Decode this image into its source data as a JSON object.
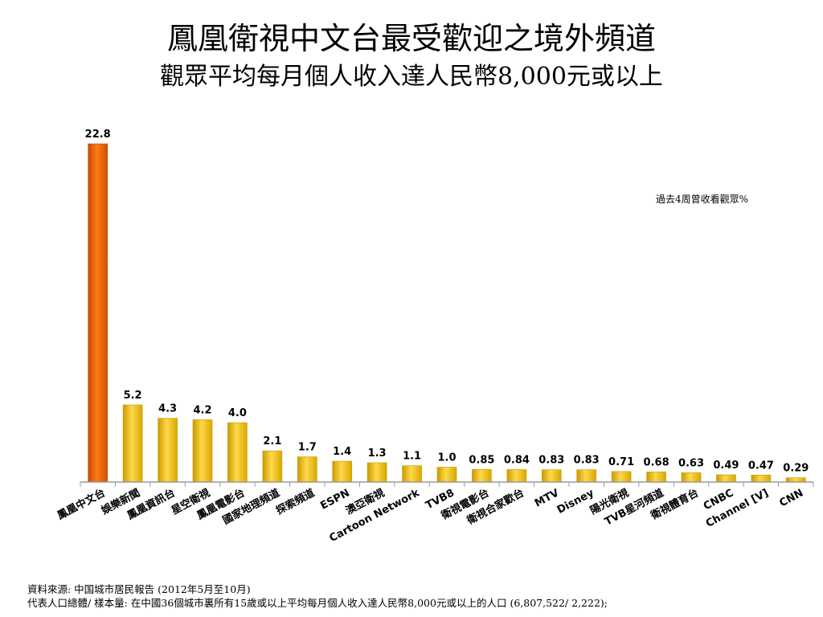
{
  "title": "鳳凰衛視中文台最受歡迎之境外頻道",
  "subtitle": "觀眾平均每月個人收入達人民幣8,000元或以上",
  "legend_note": "過去4周曾收看觀眾%",
  "footnotes": [
    "資料來源: 中国城市居民報告 (2012年5月至10月)",
    "代表人口總體/ 樣本量: 在中國36個城市裏所有15歲或以上平均每月個人收入達人民幣8,000元或以上的人口 (6,807,522/ 2,222);"
  ],
  "colors": {
    "highlight": "#f26a10",
    "highlight_dark": "#c94a00",
    "bar": "#f2c21a",
    "bar_dark": "#c99a00",
    "axis": "#999999"
  },
  "chart_data": {
    "type": "bar",
    "categories": [
      "鳳凰中文台",
      "娛樂新聞",
      "鳳凰資訊台",
      "星空衛視",
      "鳳凰電影台",
      "國家地理頻道",
      "探索頻道",
      "ESPN",
      "澳亞衛視",
      "Cartoon Network",
      "TVB8",
      "衛視電影台",
      "衛視合家歡台",
      "MTV",
      "Disney",
      "陽光衛視",
      "TVB星河頻道",
      "衛視體育台",
      "CNBC",
      "Channel [V]",
      "CNN"
    ],
    "value_labels": [
      "22.8",
      "5.2",
      "4.3",
      "4.2",
      "4.0",
      "2.1",
      "1.7",
      "1.4",
      "1.3",
      "1.1",
      "1.0",
      "0.85",
      "0.84",
      "0.83",
      "0.83",
      "0.71",
      "0.68",
      "0.63",
      "0.49",
      "0.47",
      "0.29"
    ],
    "values": [
      22.8,
      5.2,
      4.3,
      4.2,
      4.0,
      2.1,
      1.7,
      1.4,
      1.3,
      1.1,
      1.0,
      0.85,
      0.84,
      0.83,
      0.83,
      0.71,
      0.68,
      0.63,
      0.49,
      0.47,
      0.29
    ],
    "highlight_index": 0,
    "ylim": [
      0,
      22.8
    ],
    "grid": false,
    "legend": "none"
  }
}
